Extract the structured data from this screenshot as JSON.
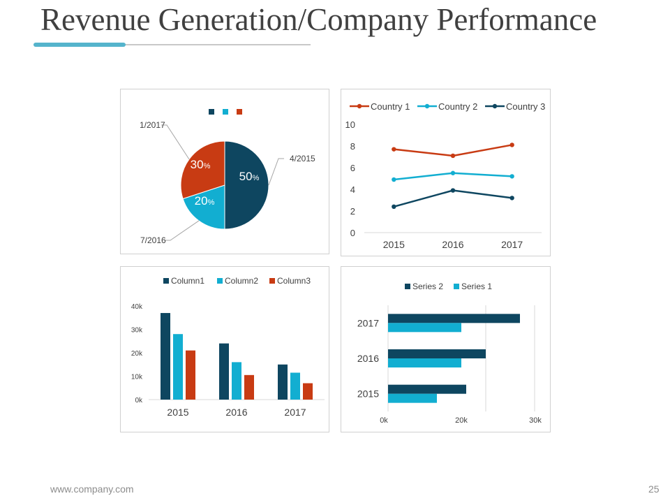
{
  "slide": {
    "title": "Revenue Generation/Company Performance",
    "footer_url": "www.company.com",
    "page_number": "25"
  },
  "colors": {
    "navy": "#0e4660",
    "cyan": "#12aed1",
    "red": "#c83b13",
    "accent_rule": "#55b4cc",
    "grid": "#d9d9d9",
    "text": "#404040"
  },
  "chart_data": [
    {
      "type": "pie",
      "labels": [
        "4/2015",
        "7/2016",
        "1/2017"
      ],
      "values": [
        50,
        20,
        30
      ],
      "value_labels": [
        "50",
        "20",
        "30"
      ],
      "value_suffix": "%",
      "colors": [
        "#0e4660",
        "#12aed1",
        "#c83b13"
      ],
      "legend": "top"
    },
    {
      "type": "line",
      "categories": [
        "2015",
        "2016",
        "2017"
      ],
      "series": [
        {
          "name": "Country 1",
          "values": [
            7.7,
            7.1,
            8.1
          ],
          "color": "#c83b13"
        },
        {
          "name": "Country 2",
          "values": [
            4.9,
            5.5,
            5.2
          ],
          "color": "#12aed1"
        },
        {
          "name": "Country 3",
          "values": [
            2.4,
            3.9,
            3.2
          ],
          "color": "#0e4660"
        }
      ],
      "yticks": [
        "0",
        "2",
        "4",
        "6",
        "8",
        "10"
      ],
      "ylim": [
        0,
        10
      ],
      "legend": "top",
      "grid": false
    },
    {
      "type": "bar",
      "categories": [
        "2015",
        "2016",
        "2017"
      ],
      "series": [
        {
          "name": "Column1",
          "values": [
            37,
            24,
            15
          ],
          "color": "#0e4660"
        },
        {
          "name": "Column2",
          "values": [
            28,
            16,
            11.5
          ],
          "color": "#12aed1"
        },
        {
          "name": "Column3",
          "values": [
            21,
            10.5,
            7
          ],
          "color": "#c83b13"
        }
      ],
      "yticks": [
        "0k",
        "10k",
        "20k",
        "30k",
        "40k"
      ],
      "ylim": [
        0,
        40
      ],
      "legend": "top",
      "grid": false
    },
    {
      "type": "bar",
      "orientation": "horizontal",
      "categories": [
        "2017",
        "2016",
        "2015"
      ],
      "series": [
        {
          "name": "Series 2",
          "values": [
            27,
            20,
            16
          ],
          "color": "#0e4660"
        },
        {
          "name": "Series 1",
          "values": [
            15,
            15,
            10
          ],
          "color": "#12aed1"
        }
      ],
      "xticks": [
        "0k",
        "20k",
        "30k"
      ],
      "xlim": [
        0,
        30
      ],
      "legend": "top",
      "grid": true
    }
  ]
}
